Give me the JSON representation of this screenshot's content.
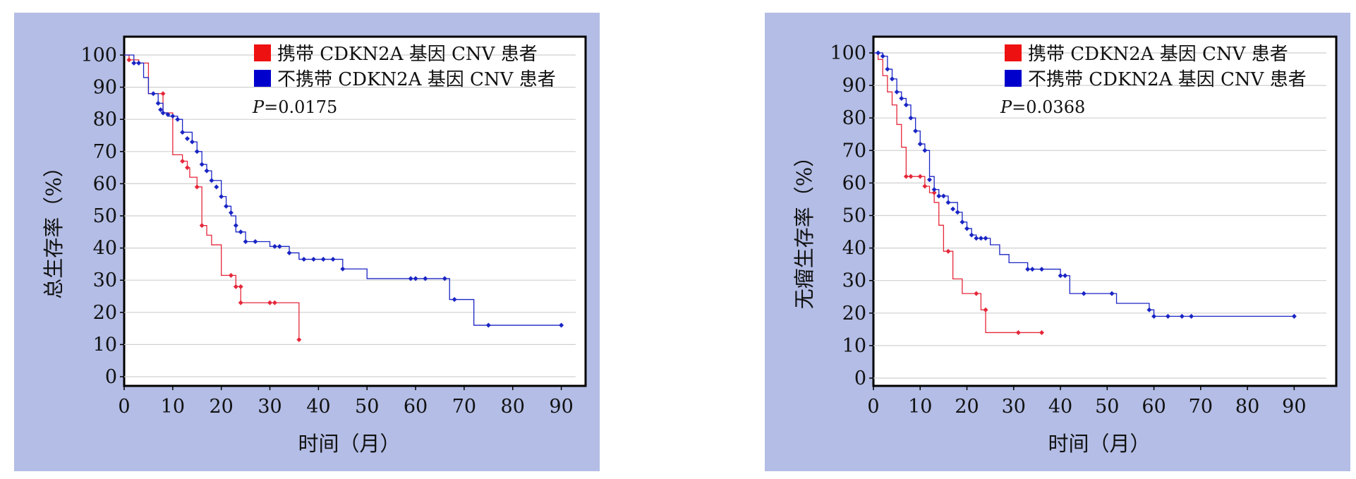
{
  "colors": {
    "panel_background": "#b3bde5",
    "series_carrier": "#e5283a",
    "series_noncarrier": "#1a25c4",
    "grid": "#d0d0d0",
    "legend_carrier": "#ee1111",
    "legend_noncarrier": "#0000cc"
  },
  "chart_data": [
    {
      "type": "line",
      "step": true,
      "ylabel": "总生存率（%）",
      "xlabel": "时间（月）",
      "xlim": [
        0,
        95
      ],
      "ylim": [
        0,
        100
      ],
      "xticks": [
        0,
        10,
        20,
        30,
        40,
        50,
        60,
        70,
        80,
        90
      ],
      "yticks": [
        0,
        10,
        20,
        30,
        40,
        50,
        60,
        70,
        80,
        90,
        100
      ],
      "grid": "horizontal",
      "legend": "top-right",
      "p_prefix": "P",
      "p_value": "=0.0175",
      "series": [
        {
          "name": "携带 CDKN2A 基因 CNV 患者",
          "color": "#e5283a",
          "steps": [
            [
              0,
              100
            ],
            [
              1,
              98.5
            ],
            [
              3,
              97.5
            ],
            [
              5,
              88
            ],
            [
              8,
              82
            ],
            [
              10,
              69
            ],
            [
              12,
              67
            ],
            [
              13,
              65
            ],
            [
              13.5,
              62
            ],
            [
              15,
              59
            ],
            [
              16,
              47
            ],
            [
              17,
              44
            ],
            [
              18,
              41
            ],
            [
              20,
              31.5
            ],
            [
              23,
              28
            ],
            [
              24,
              23
            ],
            [
              36,
              11.5
            ]
          ],
          "censored": [
            [
              1,
              98.5
            ],
            [
              8,
              88
            ],
            [
              12,
              67
            ],
            [
              13,
              65
            ],
            [
              15,
              59
            ],
            [
              16,
              47
            ],
            [
              22,
              31.5
            ],
            [
              23,
              28
            ],
            [
              24,
              28
            ],
            [
              24,
              23
            ],
            [
              30,
              23
            ],
            [
              31,
              23
            ],
            [
              36,
              11.5
            ]
          ]
        },
        {
          "name": "不携带 CDKN2A 基因 CNV 患者",
          "color": "#1a25c4",
          "steps": [
            [
              0,
              100
            ],
            [
              2,
              97.5
            ],
            [
              4,
              93
            ],
            [
              5,
              88
            ],
            [
              7,
              85
            ],
            [
              8,
              82
            ],
            [
              9,
              81
            ],
            [
              11,
              80
            ],
            [
              12,
              76
            ],
            [
              14,
              73
            ],
            [
              15,
              70
            ],
            [
              16,
              66
            ],
            [
              17,
              64
            ],
            [
              18,
              61
            ],
            [
              20,
              56
            ],
            [
              21,
              53
            ],
            [
              22,
              50
            ],
            [
              23,
              45
            ],
            [
              25,
              42
            ],
            [
              30,
              40.5
            ],
            [
              34,
              38.5
            ],
            [
              36,
              36.5
            ],
            [
              45,
              33.5
            ],
            [
              50,
              30.5
            ],
            [
              66,
              30.5
            ],
            [
              67,
              24
            ],
            [
              72,
              16
            ]
          ],
          "censored": [
            [
              2,
              97.5
            ],
            [
              3,
              97.5
            ],
            [
              6,
              88
            ],
            [
              7,
              85
            ],
            [
              7.5,
              83
            ],
            [
              8,
              82
            ],
            [
              9,
              81.5
            ],
            [
              10,
              81
            ],
            [
              11,
              80
            ],
            [
              12,
              76
            ],
            [
              13,
              74
            ],
            [
              14,
              73
            ],
            [
              15,
              70
            ],
            [
              16,
              66
            ],
            [
              17,
              64
            ],
            [
              18,
              61
            ],
            [
              19,
              59
            ],
            [
              20,
              56
            ],
            [
              21,
              53
            ],
            [
              22,
              51
            ],
            [
              23,
              47
            ],
            [
              24,
              45
            ],
            [
              25,
              42
            ],
            [
              27,
              42
            ],
            [
              31,
              40.5
            ],
            [
              32,
              40.5
            ],
            [
              34,
              38.5
            ],
            [
              37,
              36.5
            ],
            [
              39,
              36.5
            ],
            [
              41,
              36.5
            ],
            [
              43,
              36.5
            ],
            [
              45,
              33.5
            ],
            [
              59,
              30.5
            ],
            [
              60,
              30.5
            ],
            [
              62,
              30.5
            ],
            [
              66,
              30.5
            ],
            [
              68,
              24
            ],
            [
              75,
              16
            ],
            [
              90,
              16
            ]
          ]
        }
      ]
    },
    {
      "type": "line",
      "step": true,
      "ylabel": "无瘤生存率（%）",
      "xlabel": "时间（月）",
      "xlim": [
        0,
        99
      ],
      "ylim": [
        0,
        100
      ],
      "xticks": [
        0,
        10,
        20,
        30,
        40,
        50,
        60,
        70,
        80,
        90
      ],
      "yticks": [
        0,
        10,
        20,
        30,
        40,
        50,
        60,
        70,
        80,
        90,
        100
      ],
      "grid": "horizontal",
      "legend": "top-right",
      "p_prefix": "P",
      "p_value": "=0.0368",
      "series": [
        {
          "name": "携带 CDKN2A 基因 CNV 患者",
          "color": "#e5283a",
          "steps": [
            [
              0,
              100
            ],
            [
              1,
              98
            ],
            [
              2,
              93
            ],
            [
              3,
              88
            ],
            [
              4,
              84
            ],
            [
              5,
              78
            ],
            [
              6,
              71
            ],
            [
              7,
              62
            ],
            [
              11,
              59
            ],
            [
              12,
              57
            ],
            [
              13,
              54
            ],
            [
              14,
              47
            ],
            [
              15,
              39
            ],
            [
              17,
              30.5
            ],
            [
              19,
              26
            ],
            [
              23,
              21
            ],
            [
              24,
              14
            ],
            [
              36,
              14
            ]
          ],
          "censored": [
            [
              7,
              62
            ],
            [
              8,
              62
            ],
            [
              10,
              62
            ],
            [
              11,
              59
            ],
            [
              13,
              57
            ],
            [
              16,
              39
            ],
            [
              22,
              26
            ],
            [
              24,
              21
            ],
            [
              31,
              14
            ],
            [
              36,
              14
            ]
          ]
        },
        {
          "name": "不携带 CDKN2A 基因 CNV 患者",
          "color": "#1a25c4",
          "steps": [
            [
              0,
              100
            ],
            [
              2,
              99
            ],
            [
              3,
              95
            ],
            [
              4,
              92
            ],
            [
              5,
              88
            ],
            [
              6,
              86
            ],
            [
              7,
              84
            ],
            [
              8,
              80
            ],
            [
              9,
              76
            ],
            [
              10,
              72
            ],
            [
              11,
              70
            ],
            [
              12,
              62
            ],
            [
              13,
              58
            ],
            [
              14,
              56
            ],
            [
              16,
              54
            ],
            [
              18,
              51
            ],
            [
              19,
              48
            ],
            [
              20,
              46
            ],
            [
              21,
              44
            ],
            [
              22,
              43
            ],
            [
              25,
              41
            ],
            [
              27,
              38
            ],
            [
              29,
              35.5
            ],
            [
              33,
              33.5
            ],
            [
              40,
              31.5
            ],
            [
              42,
              26
            ],
            [
              52,
              23
            ],
            [
              59,
              21
            ],
            [
              60,
              19
            ]
          ],
          "censored": [
            [
              1,
              100
            ],
            [
              2,
              99
            ],
            [
              3,
              95
            ],
            [
              4,
              92
            ],
            [
              5,
              88
            ],
            [
              6,
              86
            ],
            [
              7,
              84
            ],
            [
              8,
              80
            ],
            [
              9,
              76
            ],
            [
              10,
              72
            ],
            [
              11,
              70
            ],
            [
              12,
              61
            ],
            [
              13,
              58
            ],
            [
              14,
              56
            ],
            [
              15,
              56
            ],
            [
              16,
              54
            ],
            [
              17,
              52
            ],
            [
              18,
              51
            ],
            [
              19,
              48
            ],
            [
              20,
              46
            ],
            [
              21,
              44
            ],
            [
              22,
              43
            ],
            [
              23,
              43
            ],
            [
              24,
              43
            ],
            [
              33,
              33.5
            ],
            [
              34,
              33.5
            ],
            [
              36,
              33.5
            ],
            [
              40,
              31.5
            ],
            [
              41,
              31.5
            ],
            [
              45,
              26
            ],
            [
              51,
              26
            ],
            [
              59,
              21
            ],
            [
              60,
              19
            ],
            [
              63,
              19
            ],
            [
              66,
              19
            ],
            [
              68,
              19
            ],
            [
              90,
              19
            ]
          ]
        }
      ]
    }
  ]
}
